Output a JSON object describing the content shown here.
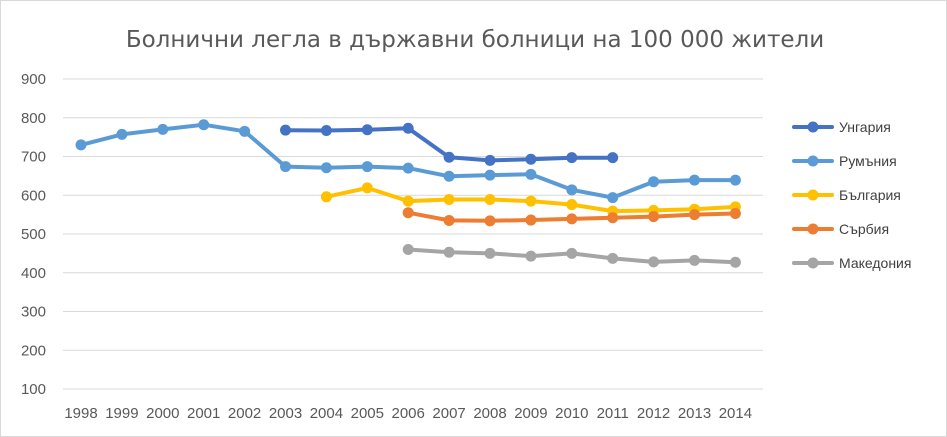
{
  "chart_data": {
    "type": "line",
    "title": "Болнични легла в държавни болници на 100 000 жители",
    "xlabel": "",
    "ylabel": "",
    "categories": [
      "1998",
      "1999",
      "2000",
      "2001",
      "2002",
      "2003",
      "2004",
      "2005",
      "2006",
      "2007",
      "2008",
      "2009",
      "2010",
      "2011",
      "2012",
      "2013",
      "2014"
    ],
    "ylim": [
      100,
      900
    ],
    "yticks": [
      100,
      200,
      300,
      400,
      500,
      600,
      700,
      800,
      900
    ],
    "grid": true,
    "legend_position": "right",
    "series": [
      {
        "name": "Унгария",
        "color": "#4472c4",
        "values": [
          null,
          null,
          null,
          null,
          null,
          768,
          767,
          769,
          773,
          698,
          690,
          693,
          697,
          697,
          null,
          null,
          null
        ]
      },
      {
        "name": "Румъния",
        "color": "#5b9bd5",
        "values": [
          730,
          757,
          770,
          782,
          765,
          674,
          671,
          674,
          670,
          649,
          652,
          654,
          614,
          594,
          635,
          639,
          639
        ]
      },
      {
        "name": "България",
        "color": "#ffc000",
        "values": [
          null,
          null,
          null,
          null,
          null,
          null,
          596,
          619,
          585,
          589,
          589,
          585,
          576,
          559,
          561,
          564,
          570
        ]
      },
      {
        "name": "Сърбия",
        "color": "#ed7d31",
        "values": [
          null,
          null,
          null,
          null,
          null,
          null,
          null,
          null,
          555,
          535,
          534,
          536,
          539,
          542,
          545,
          550,
          553
        ]
      },
      {
        "name": "Македония",
        "color": "#a5a5a5",
        "values": [
          null,
          null,
          null,
          null,
          null,
          null,
          null,
          null,
          460,
          453,
          450,
          443,
          450,
          437,
          428,
          432,
          427
        ]
      }
    ]
  }
}
